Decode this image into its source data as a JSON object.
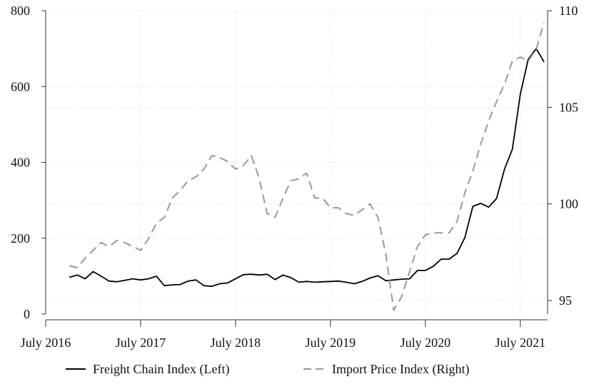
{
  "chart_data": {
    "type": "line",
    "title": "",
    "xlabel": "",
    "x_ticks": [
      "July 2016",
      "July 2017",
      "July 2018",
      "July 2019",
      "July 2020",
      "July 2021"
    ],
    "x_start": "2016-07",
    "left_axis": {
      "ylim": [
        0,
        800
      ],
      "ticks": [
        "0",
        "200",
        "400",
        "600",
        "800"
      ],
      "ylabel": ""
    },
    "right_axis": {
      "ylim": [
        94.3,
        110
      ],
      "ticks": [
        "95",
        "100",
        "105",
        "110"
      ],
      "ylabel": ""
    },
    "grid": "dotted horizontal at left-axis ticks",
    "legend_position": "bottom",
    "series": [
      {
        "name": "Freight Chain Index (Left)",
        "axis": "left",
        "color": "#000000",
        "style": "solid",
        "start_month_index": 3,
        "values": [
          97,
          103,
          93,
          112,
          100,
          87,
          85,
          89,
          93,
          90,
          93,
          100,
          75,
          77,
          78,
          87,
          90,
          75,
          73,
          80,
          82,
          93,
          104,
          105,
          103,
          105,
          91,
          103,
          96,
          84,
          86,
          84,
          85,
          86,
          87,
          84,
          80,
          86,
          95,
          101,
          88,
          90,
          92,
          93,
          115,
          115,
          126,
          145,
          145,
          160,
          202,
          284,
          292,
          282,
          305,
          382,
          435,
          580,
          672,
          700,
          665
        ]
      },
      {
        "name": "Import Price Index (Right)",
        "axis": "right",
        "color": "#999999",
        "style": "dashed",
        "start_month_index": 3,
        "values": [
          96.8,
          96.7,
          97.2,
          97.6,
          98.0,
          97.8,
          98.1,
          98.0,
          97.8,
          97.6,
          98.2,
          99.0,
          99.3,
          100.3,
          100.7,
          101.2,
          101.4,
          101.8,
          102.5,
          102.4,
          102.2,
          101.8,
          102.0,
          102.5,
          101.3,
          99.5,
          99.3,
          100.3,
          101.2,
          101.3,
          101.6,
          100.3,
          100.3,
          99.8,
          99.8,
          99.5,
          99.4,
          99.7,
          100.0,
          99.3,
          97.4,
          94.5,
          95.2,
          96.5,
          97.8,
          98.4,
          98.5,
          98.5,
          98.5,
          99.1,
          100.6,
          101.7,
          103.1,
          104.3,
          105.3,
          106.2,
          107.4,
          107.6,
          107.4,
          108.0,
          109.4
        ]
      }
    ]
  }
}
